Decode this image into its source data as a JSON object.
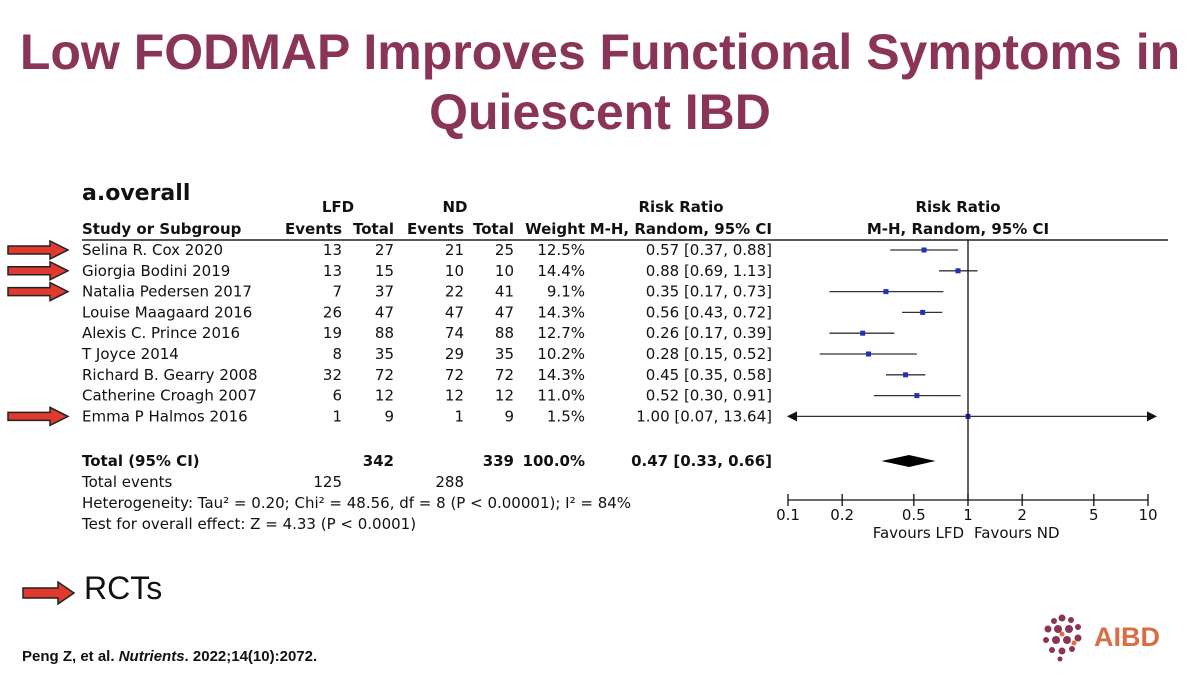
{
  "slide": {
    "title_line1": "Low FODMAP Improves Functional Symptoms in",
    "title_line2": "Quiescent IBD",
    "rcts_label": "RCTs",
    "citation_authors": "Peng Z, et al.",
    "citation_journal": "Nutrients",
    "citation_rest": ". 2022;14(10):2072.",
    "logo_text": "AIBD",
    "title_color": "#8a3457",
    "arrow_color": "#e03a2e"
  },
  "chart_data": {
    "type": "forest",
    "panel_title": "a.overall",
    "headers": {
      "group1": "LFD",
      "group2": "ND",
      "risk_ratio": "Risk Ratio",
      "study": "Study or Subgroup",
      "events": "Events",
      "total": "Total",
      "weight": "Weight",
      "method": "M-H, Random, 95% CI",
      "plot_title": "Risk Ratio",
      "plot_method": "M-H, Random, 95% CI"
    },
    "studies": [
      {
        "study": "Selina R. Cox 2020",
        "lfd_events": "13",
        "lfd_total": "27",
        "nd_events": "21",
        "nd_total": "25",
        "weight": "12.5%",
        "ci_text": "0.57 [0.37, 0.88]",
        "rr": 0.57,
        "lo": 0.37,
        "hi": 0.88,
        "rct": true
      },
      {
        "study": "Giorgia Bodini 2019",
        "lfd_events": "13",
        "lfd_total": "15",
        "nd_events": "10",
        "nd_total": "10",
        "weight": "14.4%",
        "ci_text": "0.88 [0.69, 1.13]",
        "rr": 0.88,
        "lo": 0.69,
        "hi": 1.13,
        "rct": true
      },
      {
        "study": "Natalia Pedersen 2017",
        "lfd_events": "7",
        "lfd_total": "37",
        "nd_events": "22",
        "nd_total": "41",
        "weight": "9.1%",
        "ci_text": "0.35 [0.17, 0.73]",
        "rr": 0.35,
        "lo": 0.17,
        "hi": 0.73,
        "rct": true
      },
      {
        "study": "Louise Maagaard 2016",
        "lfd_events": "26",
        "lfd_total": "47",
        "nd_events": "47",
        "nd_total": "47",
        "weight": "14.3%",
        "ci_text": "0.56 [0.43, 0.72]",
        "rr": 0.56,
        "lo": 0.43,
        "hi": 0.72,
        "rct": false
      },
      {
        "study": "Alexis C. Prince 2016",
        "lfd_events": "19",
        "lfd_total": "88",
        "nd_events": "74",
        "nd_total": "88",
        "weight": "12.7%",
        "ci_text": "0.26 [0.17, 0.39]",
        "rr": 0.26,
        "lo": 0.17,
        "hi": 0.39,
        "rct": false
      },
      {
        "study": "T Joyce 2014",
        "lfd_events": "8",
        "lfd_total": "35",
        "nd_events": "29",
        "nd_total": "35",
        "weight": "10.2%",
        "ci_text": "0.28 [0.15, 0.52]",
        "rr": 0.28,
        "lo": 0.15,
        "hi": 0.52,
        "rct": false
      },
      {
        "study": "Richard B. Gearry 2008",
        "lfd_events": "32",
        "lfd_total": "72",
        "nd_events": "72",
        "nd_total": "72",
        "weight": "14.3%",
        "ci_text": "0.45 [0.35, 0.58]",
        "rr": 0.45,
        "lo": 0.35,
        "hi": 0.58,
        "rct": false
      },
      {
        "study": "Catherine Croagh 2007",
        "lfd_events": "6",
        "lfd_total": "12",
        "nd_events": "12",
        "nd_total": "12",
        "weight": "11.0%",
        "ci_text": "0.52 [0.30, 0.91]",
        "rr": 0.52,
        "lo": 0.3,
        "hi": 0.91,
        "rct": false
      },
      {
        "study": "Emma P Halmos 2016",
        "lfd_events": "1",
        "lfd_total": "9",
        "nd_events": "1",
        "nd_total": "9",
        "weight": "1.5%",
        "ci_text": "1.00 [0.07, 13.64]",
        "rr": 1.0,
        "lo": 0.07,
        "hi": 13.64,
        "rct": true
      }
    ],
    "total": {
      "label": "Total (95% CI)",
      "lfd_total": "342",
      "nd_total": "339",
      "weight": "100.0%",
      "ci_text": "0.47 [0.33, 0.66]",
      "rr": 0.47,
      "lo": 0.33,
      "hi": 0.66
    },
    "total_events": {
      "label": "Total events",
      "lfd": "125",
      "nd": "288"
    },
    "heterogeneity": "Heterogeneity: Tau² = 0.20; Chi² = 48.56, df = 8 (P < 0.00001); I² = 84%",
    "overall_effect": "Test for overall effect: Z = 4.33 (P < 0.0001)",
    "x_scale": "log",
    "xlim": [
      0.1,
      10
    ],
    "x_ticks": [
      0.1,
      0.2,
      0.5,
      1,
      2,
      5,
      10
    ],
    "x_tick_labels": [
      "0.1",
      "0.2",
      "0.5",
      "1",
      "2",
      "5",
      "10"
    ],
    "favours_left": "Favours LFD",
    "favours_right": "Favours ND",
    "point_color": "#1f2fbf"
  }
}
